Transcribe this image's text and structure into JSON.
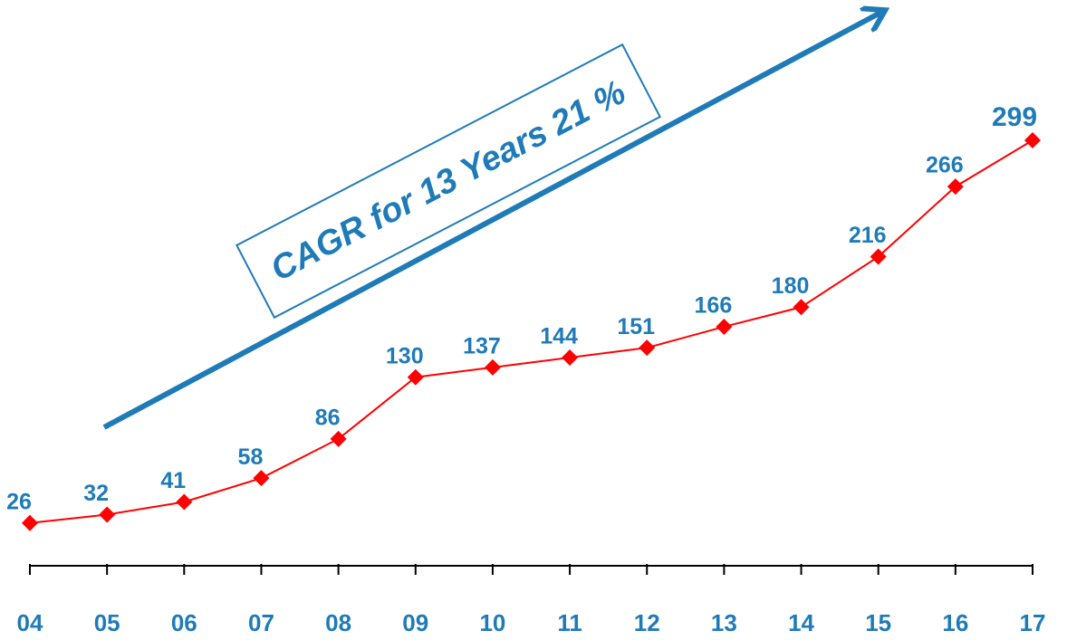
{
  "chart_data": {
    "type": "line",
    "annotation": "CAGR for 13 Years 21 %",
    "categories": [
      "04",
      "05",
      "06",
      "07",
      "08",
      "09",
      "10",
      "11",
      "12",
      "13",
      "14",
      "15",
      "16",
      "17"
    ],
    "series": [
      {
        "color": "#ff0000",
        "values": [
          26,
          32,
          41,
          58,
          86,
          130,
          137,
          144,
          151,
          166,
          180,
          216,
          266,
          299
        ]
      }
    ],
    "label_color": "#1f7bb8"
  }
}
